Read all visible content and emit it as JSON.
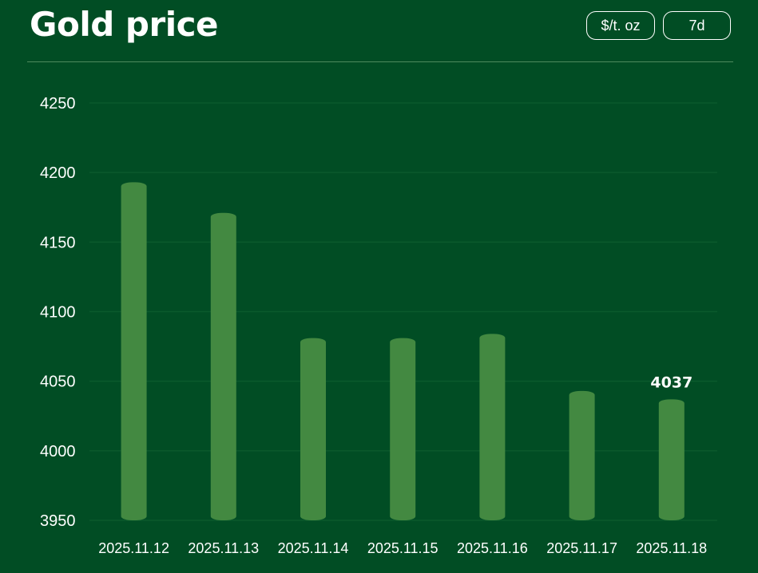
{
  "header": {
    "title": "Gold price",
    "unit_button": "$/t. oz",
    "range_button": "7d"
  },
  "colors": {
    "background": "#014d24",
    "bar": "#438941",
    "grid": "#0b5a2c"
  },
  "chart_data": {
    "type": "bar",
    "title": "Gold price",
    "categories": [
      "2025.11.12",
      "2025.11.13",
      "2025.11.14",
      "2025.11.15",
      "2025.11.16",
      "2025.11.17",
      "2025.11.18"
    ],
    "values": [
      4193,
      4171,
      4081,
      4081,
      4084,
      4043,
      4037
    ],
    "ylim": [
      3950,
      4250
    ],
    "yticks": [
      3950,
      4000,
      4050,
      4100,
      4150,
      4200,
      4250
    ],
    "data_labels": [
      {
        "index": 6,
        "text": "4037"
      }
    ],
    "xlabel": "",
    "ylabel": "",
    "grid": true
  }
}
